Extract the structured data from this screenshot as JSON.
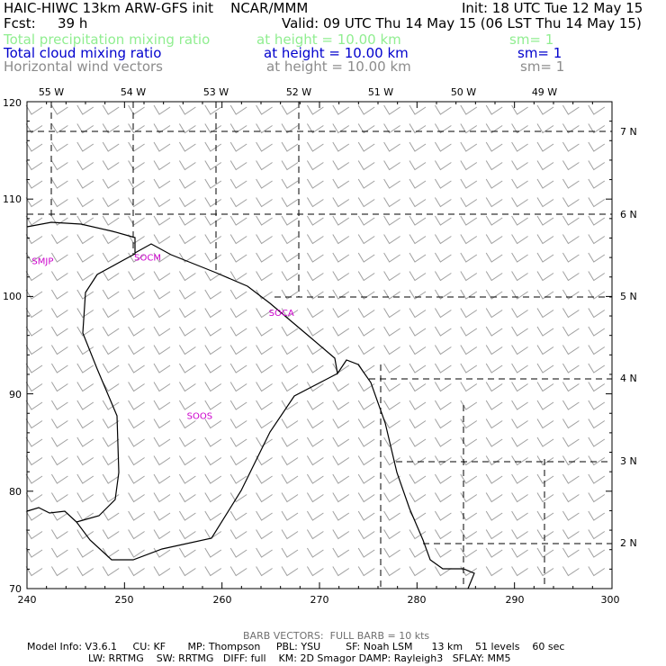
{
  "header": {
    "title": "HAIC-HIWC 13km ARW-GFS init    NCAR/MMM",
    "init": "Init: 18 UTC Tue 12 May 15",
    "fcst_label": "Fcst:",
    "fcst_value": "39 h",
    "valid": "Valid: 09 UTC Thu 14 May 15 (06 LST Thu 14 May 15)",
    "fields": [
      {
        "name": "Total precipitation mixing ratio",
        "level": "at height = 10.00 km",
        "sm": "sm= 1",
        "color": "#90ee90"
      },
      {
        "name": "Total cloud mixing ratio",
        "level": "at height = 10.00 km",
        "sm": "sm= 1",
        "color": "#0000cd"
      },
      {
        "name": "Horizontal wind vectors",
        "level": "at height = 10.00 km",
        "sm": "sm= 1",
        "color": "#8c8c8c"
      }
    ]
  },
  "map": {
    "x_range": [
      240,
      300
    ],
    "y_range": [
      70,
      120
    ],
    "x_ticks": [
      "240",
      "250",
      "260",
      "270",
      "280",
      "290",
      "300"
    ],
    "y_ticks": [
      "70",
      "80",
      "90",
      "100",
      "110",
      "120"
    ],
    "lon_labels": [
      "55 W",
      "54 W",
      "53 W",
      "52 W",
      "51 W",
      "50 W",
      "49 W"
    ],
    "lat_labels": [
      "7 N",
      "6 N",
      "5 N",
      "4 N",
      "3 N",
      "2 N"
    ],
    "stations": [
      {
        "id": "SMJP",
        "x": 240.5,
        "y": 103.3
      },
      {
        "id": "SOCM",
        "x": 251.0,
        "y": 103.7
      },
      {
        "id": "SOCA",
        "x": 264.8,
        "y": 98.0
      },
      {
        "id": "SOOS",
        "x": 256.4,
        "y": 87.4
      }
    ],
    "colors": {
      "coast": "#000000",
      "barbs": "#a0a0a0",
      "grid": "#000000",
      "stations": "#cc00cc"
    }
  },
  "footer": {
    "barb_note": "BARB VECTORS:  FULL BARB = 10 kts",
    "model_info": "Model Info: V3.6.1     CU: KF       MP: Thompson     PBL: YSU        SF: Noah LSM      13 km    51 levels    60 sec",
    "model_info2": "LW: RRTMG    SW: RRTMG   DIFF: full    KM: 2D Smagor DAMP: Rayleigh3   SFLAY: MM5"
  }
}
